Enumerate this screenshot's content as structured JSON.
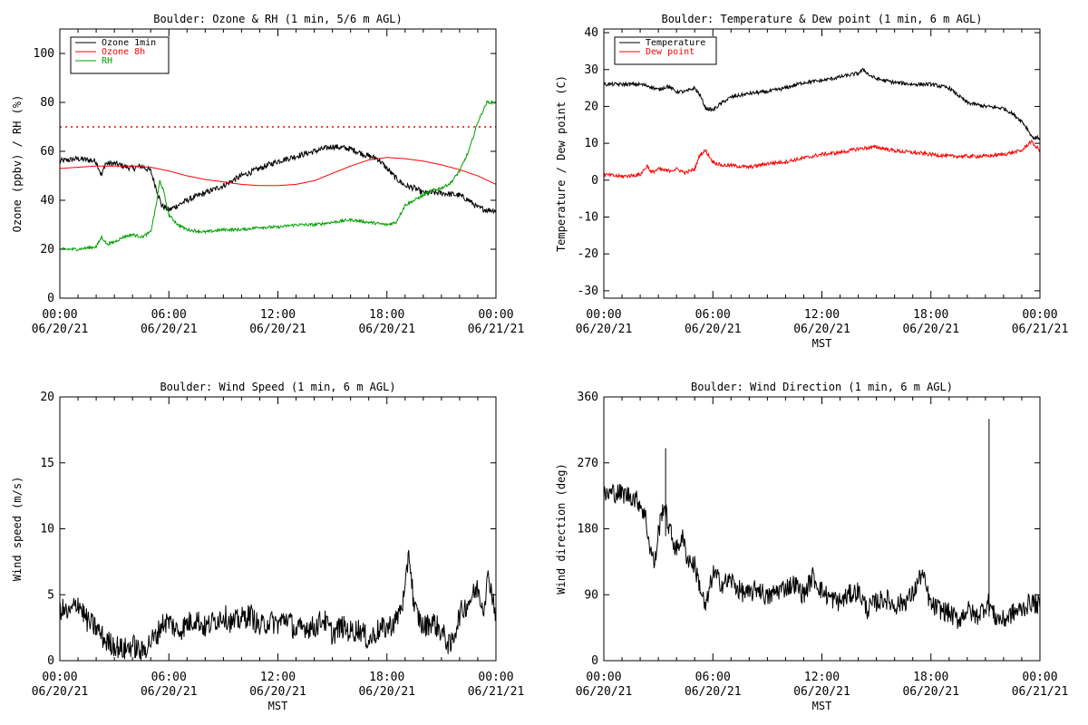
{
  "chart_data": [
    {
      "type": "line",
      "title": "Boulder: Ozone & RH (1 min, 5/6 m AGL)",
      "xlabel": "",
      "ylabel": "Ozone (ppbv) / RH (%)",
      "ylim": [
        0,
        110
      ],
      "yticks": [
        0,
        20,
        40,
        60,
        80,
        100
      ],
      "xlim": [
        0,
        24
      ],
      "xticks": [
        0,
        6,
        12,
        18,
        24
      ],
      "xtick_labels": [
        [
          "00:00",
          "06/20/21"
        ],
        [
          "06:00",
          "06/20/21"
        ],
        [
          "12:00",
          "06/20/21"
        ],
        [
          "18:00",
          "06/20/21"
        ],
        [
          "00:00",
          "06/21/21"
        ]
      ],
      "legend": "top-left",
      "reference_line": {
        "y": 70,
        "color": "#ff0000",
        "style": "dotted"
      },
      "series": [
        {
          "name": "Ozone 1min",
          "color": "#000000",
          "x": [
            0,
            1,
            2,
            2.3,
            2.5,
            3,
            4,
            4.5,
            5,
            5.3,
            5.6,
            6,
            7,
            8,
            9,
            10,
            11,
            12,
            13,
            14,
            15,
            16,
            17,
            17.5,
            18,
            18.5,
            19,
            19.5,
            20,
            21,
            22,
            22.5,
            23,
            23.5,
            24
          ],
          "y": [
            56,
            57,
            56,
            50,
            55,
            55,
            53,
            54,
            52,
            45,
            38,
            36,
            40,
            43,
            46,
            50,
            53,
            56,
            58,
            60,
            62,
            61,
            58,
            57,
            53,
            49,
            46,
            45,
            43,
            43,
            42,
            40,
            37,
            36,
            36
          ]
        },
        {
          "name": "Ozone 8h",
          "color": "#ff0000",
          "x": [
            0,
            2,
            4,
            5,
            6,
            7,
            8,
            9,
            10,
            11,
            12,
            13,
            14,
            15,
            16,
            17,
            18,
            19,
            20,
            21,
            22,
            23,
            24
          ],
          "y": [
            53,
            54,
            54,
            53.5,
            52,
            50,
            48.5,
            47.5,
            46.5,
            46,
            46,
            46.5,
            48,
            51,
            54,
            56.5,
            57.5,
            57,
            56,
            54.5,
            52.5,
            50,
            46.5
          ]
        },
        {
          "name": "RH",
          "color": "#00a000",
          "x": [
            0,
            1,
            2,
            2.3,
            2.6,
            3,
            3.5,
            4,
            4.5,
            5,
            5.3,
            5.5,
            5.7,
            6,
            6.5,
            7,
            8,
            9,
            10,
            11,
            12,
            13,
            14,
            15,
            16,
            17,
            18,
            18.5,
            19,
            20,
            20.5,
            21,
            21.5,
            22,
            22.5,
            23,
            23.5,
            24
          ],
          "y": [
            20,
            20,
            21,
            25,
            22,
            23,
            25,
            26,
            25,
            27,
            38,
            48,
            44,
            34,
            30,
            28,
            27,
            28,
            28,
            29,
            29,
            30,
            30,
            31,
            32,
            31,
            30,
            31,
            38,
            42,
            44,
            45,
            47,
            52,
            60,
            72,
            80,
            80
          ]
        }
      ]
    },
    {
      "type": "line",
      "title": "Boulder: Temperature & Dew point (1 min, 6 m AGL)",
      "xlabel": "MST",
      "ylabel": "Temperature / Dew point (C)",
      "ylim": [
        -32,
        41
      ],
      "yticks": [
        -30,
        -20,
        -10,
        0,
        10,
        20,
        30,
        40
      ],
      "xlim": [
        0,
        24
      ],
      "xticks": [
        0,
        6,
        12,
        18,
        24
      ],
      "xtick_labels": [
        [
          "00:00",
          "06/20/21"
        ],
        [
          "06:00",
          "06/20/21"
        ],
        [
          "12:00",
          "06/20/21"
        ],
        [
          "18:00",
          "06/20/21"
        ],
        [
          "00:00",
          "06/21/21"
        ]
      ],
      "legend": "top-left",
      "series": [
        {
          "name": "Temperature",
          "color": "#000000",
          "x": [
            0,
            1,
            2,
            2.5,
            3,
            3.5,
            4,
            4.5,
            5,
            5.3,
            5.6,
            6,
            6.5,
            7,
            8,
            9,
            10,
            11,
            12,
            13,
            14,
            14.3,
            14.6,
            15,
            16,
            17,
            18,
            19,
            19.5,
            20,
            21,
            22,
            22.5,
            23,
            23.3,
            23.6,
            24
          ],
          "y": [
            26,
            26,
            26,
            25.5,
            24.5,
            25.5,
            24,
            24,
            25,
            23,
            19.5,
            19,
            21,
            22.5,
            23.5,
            24,
            25,
            26.5,
            27,
            28,
            29,
            30,
            28.5,
            27.5,
            26.5,
            26,
            26,
            25,
            23,
            21,
            20,
            19.5,
            18,
            16,
            14,
            11.5,
            11.5
          ]
        },
        {
          "name": "Dew point",
          "color": "#ff0000",
          "x": [
            0,
            1,
            2,
            2.4,
            2.6,
            3,
            3.5,
            4,
            4.5,
            5,
            5.3,
            5.6,
            6,
            6.5,
            7,
            8,
            9,
            10,
            11,
            12,
            13,
            14,
            15,
            16,
            17,
            18,
            19,
            20,
            21,
            22,
            22.5,
            23,
            23.5,
            24
          ],
          "y": [
            1.5,
            1,
            1.5,
            4,
            2,
            3,
            2.5,
            3,
            2,
            3,
            7,
            8,
            5,
            4,
            4,
            3.5,
            4.5,
            5,
            6,
            7,
            7.5,
            8.5,
            9,
            8,
            7.5,
            7,
            6.5,
            6.5,
            6.5,
            7,
            7.5,
            8,
            10.5,
            8
          ]
        }
      ]
    },
    {
      "type": "line",
      "title": "Boulder: Wind Speed (1 min, 6 m AGL)",
      "xlabel": "MST",
      "ylabel": "Wind speed (m/s)",
      "ylim": [
        0,
        20
      ],
      "yticks": [
        0,
        5,
        10,
        15,
        20
      ],
      "xlim": [
        0,
        24
      ],
      "xticks": [
        0,
        6,
        12,
        18,
        24
      ],
      "xtick_labels": [
        [
          "00:00",
          "06/20/21"
        ],
        [
          "06:00",
          "06/20/21"
        ],
        [
          "12:00",
          "06/20/21"
        ],
        [
          "18:00",
          "06/20/21"
        ],
        [
          "00:00",
          "06/21/21"
        ]
      ],
      "series": [
        {
          "name": "",
          "color": "#000000",
          "x": [
            0,
            0.5,
            1,
            1.5,
            2,
            2.5,
            3,
            3.5,
            4,
            4.5,
            5,
            5.3,
            5.6,
            6,
            6.5,
            7,
            7.5,
            8,
            8.5,
            9,
            9.5,
            10,
            10.5,
            11,
            11.5,
            12,
            12.5,
            13,
            13.5,
            14,
            14.5,
            15,
            15.5,
            16,
            16.5,
            17,
            17.5,
            18,
            18.5,
            19,
            19.2,
            19.5,
            20,
            20.5,
            21,
            21.5,
            22,
            22.5,
            23,
            23.3,
            23.6,
            24
          ],
          "y": [
            4,
            3.5,
            4.5,
            3,
            2.5,
            1.5,
            1.2,
            0.8,
            1.2,
            0.6,
            1.5,
            1.8,
            2.8,
            3,
            2.2,
            2.8,
            3.2,
            2.5,
            3,
            3.5,
            2.8,
            3.2,
            3.5,
            2.5,
            3,
            2.8,
            3.3,
            2.2,
            2.6,
            2.5,
            3.2,
            2,
            2.6,
            2.2,
            2.4,
            1.5,
            2.3,
            2.5,
            3,
            5,
            8.5,
            4,
            2.5,
            3,
            2.2,
            1,
            3.5,
            4.5,
            5.5,
            4,
            6.5,
            3.5
          ]
        }
      ]
    },
    {
      "type": "line",
      "title": "Boulder: Wind Direction (1 min, 6 m AGL)",
      "xlabel": "MST",
      "ylabel": "Wind direction (deg)",
      "ylim": [
        0,
        360
      ],
      "yticks": [
        0,
        90,
        180,
        270,
        360
      ],
      "xlim": [
        0,
        24
      ],
      "xticks": [
        0,
        6,
        12,
        18,
        24
      ],
      "xtick_labels": [
        [
          "00:00",
          "06/20/21"
        ],
        [
          "06:00",
          "06/20/21"
        ],
        [
          "12:00",
          "06/20/21"
        ],
        [
          "18:00",
          "06/20/21"
        ],
        [
          "00:00",
          "06/21/21"
        ]
      ],
      "series": [
        {
          "name": "",
          "color": "#000000",
          "x": [
            0,
            0.5,
            1,
            1.5,
            2,
            2.3,
            2.5,
            2.8,
            3,
            3.3,
            3.6,
            4,
            4.3,
            4.6,
            5,
            5.3,
            5.6,
            6,
            6.5,
            7,
            7.5,
            8,
            8.5,
            9,
            9.5,
            10,
            10.5,
            11,
            11.5,
            12,
            12.5,
            13,
            13.5,
            14,
            14.5,
            15,
            15.5,
            16,
            16.5,
            17,
            17.5,
            18,
            18.5,
            19,
            19.5,
            20,
            20.5,
            21,
            21.2,
            21.5,
            22,
            22.5,
            23,
            23.5,
            24
          ],
          "y": [
            225,
            230,
            228,
            225,
            215,
            195,
            160,
            130,
            175,
            215,
            180,
            150,
            170,
            140,
            130,
            100,
            70,
            120,
            105,
            110,
            95,
            90,
            100,
            85,
            95,
            100,
            105,
            90,
            115,
            95,
            85,
            80,
            90,
            95,
            70,
            80,
            85,
            75,
            80,
            90,
            120,
            75,
            70,
            65,
            55,
            70,
            60,
            75,
            80,
            60,
            55,
            65,
            70,
            80,
            75
          ]
        }
      ]
    }
  ]
}
